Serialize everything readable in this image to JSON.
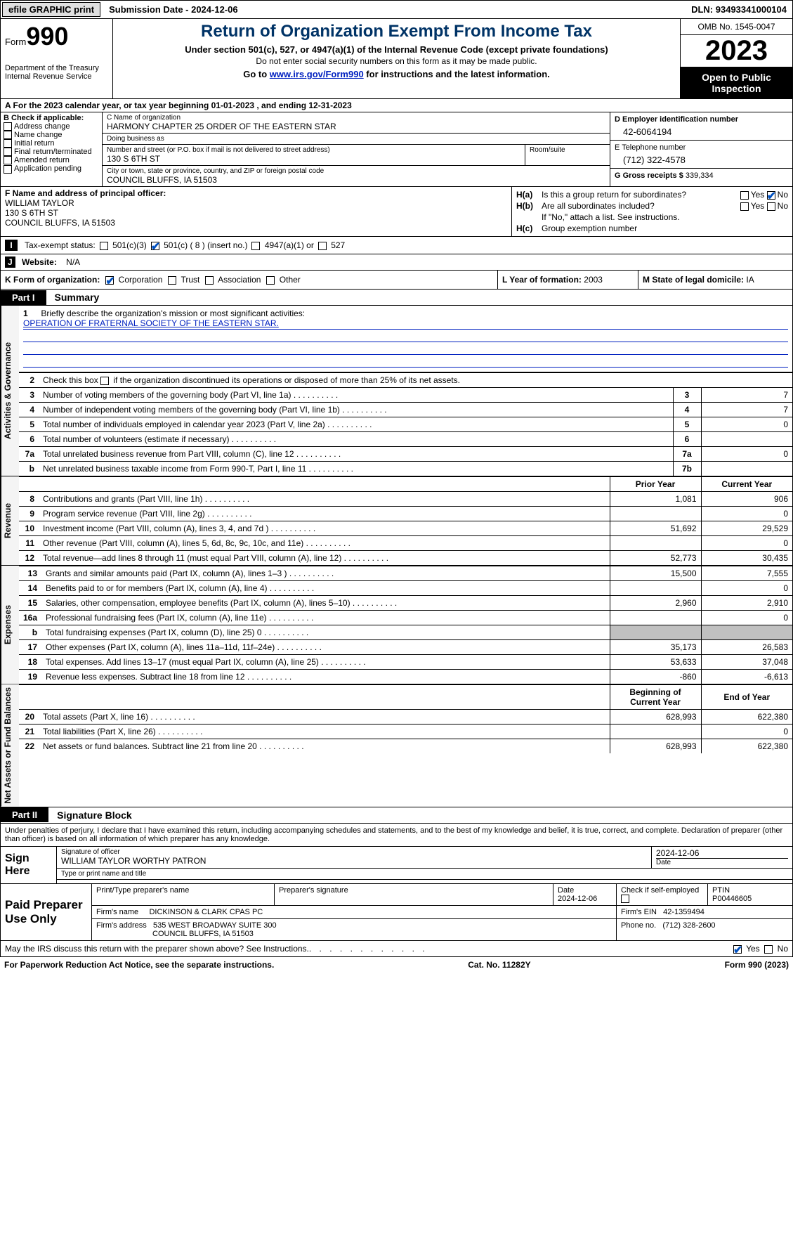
{
  "topbar": {
    "efile": "efile GRAPHIC print",
    "submission": "Submission Date - 2024-12-06",
    "dln_label": "DLN:",
    "dln": "93493341000104"
  },
  "header": {
    "form_prefix": "Form",
    "form_number": "990",
    "dept": "Department of the Treasury\nInternal Revenue Service",
    "title": "Return of Organization Exempt From Income Tax",
    "subtitle": "Under section 501(c), 527, or 4947(a)(1) of the Internal Revenue Code (except private foundations)",
    "note1": "Do not enter social security numbers on this form as it may be made public.",
    "note2_pre": "Go to ",
    "note2_link": "www.irs.gov/Form990",
    "note2_post": " for instructions and the latest information.",
    "omb": "OMB No. 1545-0047",
    "year": "2023",
    "open": "Open to Public Inspection"
  },
  "lineA": "A For the 2023 calendar year, or tax year beginning 01-01-2023   , and ending 12-31-2023",
  "b": {
    "label": "B Check if applicable:",
    "items": [
      "Address change",
      "Name change",
      "Initial return",
      "Final return/terminated",
      "Amended return",
      "Application pending"
    ]
  },
  "c": {
    "name_lbl": "C Name of organization",
    "name": "HARMONY CHAPTER 25 ORDER OF THE EASTERN STAR",
    "dba_lbl": "Doing business as",
    "dba": "",
    "addr_lbl": "Number and street (or P.O. box if mail is not delivered to street address)",
    "room_lbl": "Room/suite",
    "addr": "130 S 6TH ST",
    "city_lbl": "City or town, state or province, country, and ZIP or foreign postal code",
    "city": "COUNCIL BLUFFS, IA  51503"
  },
  "d": {
    "ein_lbl": "D Employer identification number",
    "ein": "42-6064194",
    "tel_lbl": "E Telephone number",
    "tel": "(712) 322-4578",
    "gross_lbl": "G Gross receipts $",
    "gross": "339,334"
  },
  "f": {
    "lbl": "F  Name and address of principal officer:",
    "name": "WILLIAM TAYLOR",
    "addr1": "130 S 6TH ST",
    "addr2": "COUNCIL BLUFFS, IA  51503"
  },
  "h": {
    "a_lbl": "H(a)",
    "a_txt": "Is this a group return for subordinates?",
    "a_yes": "Yes",
    "a_no": "No",
    "b_lbl": "H(b)",
    "b_txt": "Are all subordinates included?",
    "b_note": "If \"No,\" attach a list. See instructions.",
    "c_lbl": "H(c)",
    "c_txt": "Group exemption number"
  },
  "i": {
    "lbl": "I",
    "txt": "Tax-exempt status:",
    "o1": "501(c)(3)",
    "o2": "501(c) ( 8 ) (insert no.)",
    "o3": "4947(a)(1) or",
    "o4": "527"
  },
  "j": {
    "lbl": "J",
    "txt": "Website:",
    "val": "N/A"
  },
  "k": {
    "lbl": "K Form of organization:",
    "o1": "Corporation",
    "o2": "Trust",
    "o3": "Association",
    "o4": "Other"
  },
  "l": {
    "lbl": "L Year of formation:",
    "val": "2003"
  },
  "m": {
    "lbl": "M State of legal domicile:",
    "val": "IA"
  },
  "part1": {
    "tab": "Part I",
    "title": "Summary"
  },
  "vtabs": {
    "gov": "Activities & Governance",
    "rev": "Revenue",
    "exp": "Expenses",
    "net": "Net Assets or Fund Balances"
  },
  "mission": {
    "num": "1",
    "lbl": "Briefly describe the organization's mission or most significant activities:",
    "txt": "OPERATION OF FRATERNAL SOCIETY OF THE EASTERN STAR."
  },
  "gov_rows": [
    {
      "n": "2",
      "d": "Check this box    if the organization discontinued its operations or disposed of more than 25% of its net assets.",
      "box": "",
      "v": ""
    },
    {
      "n": "3",
      "d": "Number of voting members of the governing body (Part VI, line 1a)",
      "box": "3",
      "v": "7"
    },
    {
      "n": "4",
      "d": "Number of independent voting members of the governing body (Part VI, line 1b)",
      "box": "4",
      "v": "7"
    },
    {
      "n": "5",
      "d": "Total number of individuals employed in calendar year 2023 (Part V, line 2a)",
      "box": "5",
      "v": "0"
    },
    {
      "n": "6",
      "d": "Total number of volunteers (estimate if necessary)",
      "box": "6",
      "v": ""
    },
    {
      "n": "7a",
      "d": "Total unrelated business revenue from Part VIII, column (C), line 12",
      "box": "7a",
      "v": "0"
    },
    {
      "n": "b",
      "d": "Net unrelated business taxable income from Form 990-T, Part I, line 11",
      "box": "7b",
      "v": ""
    }
  ],
  "rev_hdr": {
    "py": "Prior Year",
    "cy": "Current Year"
  },
  "rev_rows": [
    {
      "n": "8",
      "d": "Contributions and grants (Part VIII, line 1h)",
      "py": "1,081",
      "cy": "906"
    },
    {
      "n": "9",
      "d": "Program service revenue (Part VIII, line 2g)",
      "py": "",
      "cy": "0"
    },
    {
      "n": "10",
      "d": "Investment income (Part VIII, column (A), lines 3, 4, and 7d )",
      "py": "51,692",
      "cy": "29,529"
    },
    {
      "n": "11",
      "d": "Other revenue (Part VIII, column (A), lines 5, 6d, 8c, 9c, 10c, and 11e)",
      "py": "",
      "cy": "0"
    },
    {
      "n": "12",
      "d": "Total revenue—add lines 8 through 11 (must equal Part VIII, column (A), line 12)",
      "py": "52,773",
      "cy": "30,435"
    }
  ],
  "exp_rows": [
    {
      "n": "13",
      "d": "Grants and similar amounts paid (Part IX, column (A), lines 1–3 )",
      "py": "15,500",
      "cy": "7,555"
    },
    {
      "n": "14",
      "d": "Benefits paid to or for members (Part IX, column (A), line 4)",
      "py": "",
      "cy": "0"
    },
    {
      "n": "15",
      "d": "Salaries, other compensation, employee benefits (Part IX, column (A), lines 5–10)",
      "py": "2,960",
      "cy": "2,910"
    },
    {
      "n": "16a",
      "d": "Professional fundraising fees (Part IX, column (A), line 11e)",
      "py": "",
      "cy": "0"
    },
    {
      "n": "b",
      "d": "Total fundraising expenses (Part IX, column (D), line 25) 0",
      "py": "shade",
      "cy": "shade"
    },
    {
      "n": "17",
      "d": "Other expenses (Part IX, column (A), lines 11a–11d, 11f–24e)",
      "py": "35,173",
      "cy": "26,583"
    },
    {
      "n": "18",
      "d": "Total expenses. Add lines 13–17 (must equal Part IX, column (A), line 25)",
      "py": "53,633",
      "cy": "37,048"
    },
    {
      "n": "19",
      "d": "Revenue less expenses. Subtract line 18 from line 12",
      "py": "-860",
      "cy": "-6,613"
    }
  ],
  "net_hdr": {
    "py": "Beginning of Current Year",
    "cy": "End of Year"
  },
  "net_rows": [
    {
      "n": "20",
      "d": "Total assets (Part X, line 16)",
      "py": "628,993",
      "cy": "622,380"
    },
    {
      "n": "21",
      "d": "Total liabilities (Part X, line 26)",
      "py": "",
      "cy": "0"
    },
    {
      "n": "22",
      "d": "Net assets or fund balances. Subtract line 21 from line 20",
      "py": "628,993",
      "cy": "622,380"
    }
  ],
  "part2": {
    "tab": "Part II",
    "title": "Signature Block"
  },
  "sig": {
    "note": "Under penalties of perjury, I declare that I have examined this return, including accompanying schedules and statements, and to the best of my knowledge and belief, it is true, correct, and complete. Declaration of preparer (other than officer) is based on all information of which preparer has any knowledge.",
    "here": "Sign Here",
    "officer_lbl": "Signature of officer",
    "officer": "WILLIAM TAYLOR  WORTHY PATRON",
    "date_lbl": "Date",
    "date": "2024-12-06",
    "type_lbl": "Type or print name and title"
  },
  "paid": {
    "title": "Paid Preparer Use Only",
    "name_lbl": "Print/Type preparer's name",
    "sig_lbl": "Preparer's signature",
    "pdate_lbl": "Date",
    "pdate": "2024-12-06",
    "check_lbl": "Check         if self-employed",
    "ptin_lbl": "PTIN",
    "ptin": "P00446605",
    "firm_lbl": "Firm's name",
    "firm": "DICKINSON & CLARK CPAS PC",
    "ein_lbl": "Firm's EIN",
    "ein": "42-1359494",
    "addr_lbl": "Firm's address",
    "addr1": "535 WEST BROADWAY SUITE 300",
    "addr2": "COUNCIL BLUFFS, IA  51503",
    "phone_lbl": "Phone no.",
    "phone": "(712) 328-2600"
  },
  "discuss": {
    "txt": "May the IRS discuss this return with the preparer shown above? See Instructions.",
    "yes": "Yes",
    "no": "No"
  },
  "footer": {
    "left": "For Paperwork Reduction Act Notice, see the separate instructions.",
    "mid": "Cat. No. 11282Y",
    "right_pre": "Form ",
    "right_form": "990",
    "right_post": " (2023)"
  }
}
